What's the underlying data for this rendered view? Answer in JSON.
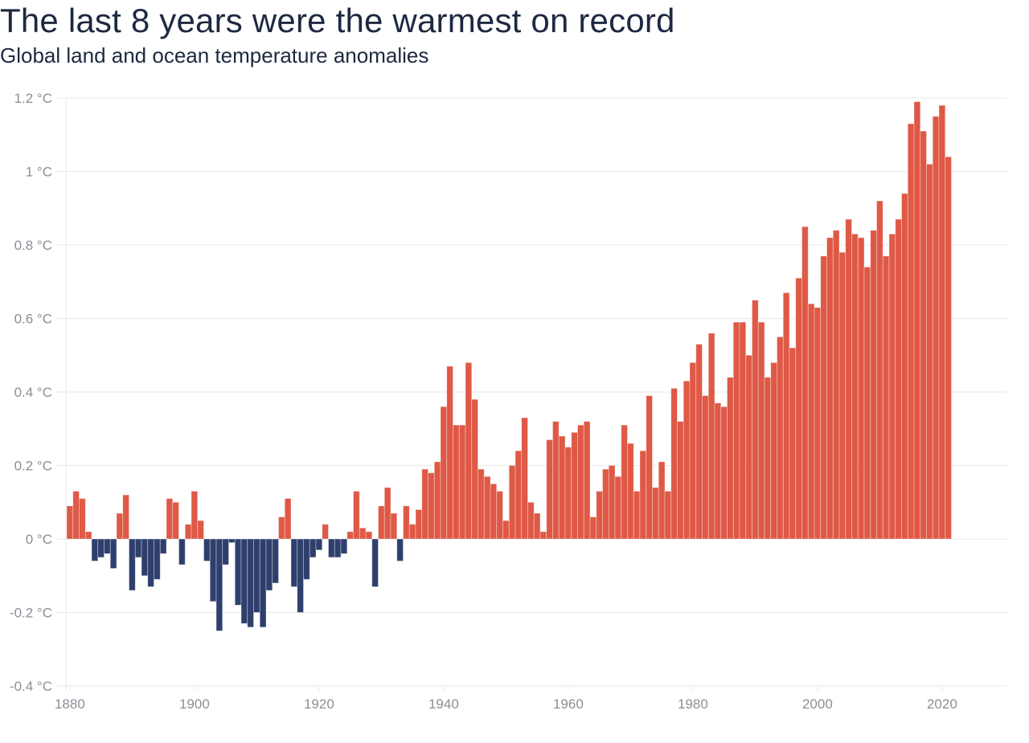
{
  "chart_data": {
    "type": "bar",
    "title": "The last 8 years were the warmest on record",
    "subtitle": "Global land and ocean temperature anomalies",
    "xlabel": "",
    "ylabel": "",
    "unit": "°C",
    "ylim": [
      -0.4,
      1.2
    ],
    "xlim": [
      1879,
      2030
    ],
    "grid": true,
    "legend": "none",
    "y_ticks": [
      -0.4,
      -0.2,
      0,
      0.2,
      0.4,
      0.6,
      0.8,
      1,
      1.2
    ],
    "y_tick_labels": [
      "-0.4 °C",
      "-0.2 °C",
      "0 °C",
      "0.2 °C",
      "0.4 °C",
      "0.6 °C",
      "0.8 °C",
      "1 °C",
      "1.2 °C"
    ],
    "x_ticks": [
      1880,
      1900,
      1920,
      1940,
      1960,
      1980,
      2000,
      2020
    ],
    "x_tick_labels": [
      "1880",
      "1900",
      "1920",
      "1940",
      "1960",
      "1980",
      "2000",
      "2020"
    ],
    "colors": {
      "positive": "#df5946",
      "negative": "#2f3f6d"
    },
    "start_year": 1880,
    "categories": [
      1880,
      1881,
      1882,
      1883,
      1884,
      1885,
      1886,
      1887,
      1888,
      1889,
      1890,
      1891,
      1892,
      1893,
      1894,
      1895,
      1896,
      1897,
      1898,
      1899,
      1900,
      1901,
      1902,
      1903,
      1904,
      1905,
      1906,
      1907,
      1908,
      1909,
      1910,
      1911,
      1912,
      1913,
      1914,
      1915,
      1916,
      1917,
      1918,
      1919,
      1920,
      1921,
      1922,
      1923,
      1924,
      1925,
      1926,
      1927,
      1928,
      1929,
      1930,
      1931,
      1932,
      1933,
      1934,
      1935,
      1936,
      1937,
      1938,
      1939,
      1940,
      1941,
      1942,
      1943,
      1944,
      1945,
      1946,
      1947,
      1948,
      1949,
      1950,
      1951,
      1952,
      1953,
      1954,
      1955,
      1956,
      1957,
      1958,
      1959,
      1960,
      1961,
      1962,
      1963,
      1964,
      1965,
      1966,
      1967,
      1968,
      1969,
      1970,
      1971,
      1972,
      1973,
      1974,
      1975,
      1976,
      1977,
      1978,
      1979,
      1980,
      1981,
      1982,
      1983,
      1984,
      1985,
      1986,
      1987,
      1988,
      1989,
      1990,
      1991,
      1992,
      1993,
      1994,
      1995,
      1996,
      1997,
      1998,
      1999,
      2000,
      2001,
      2002,
      2003,
      2004,
      2005,
      2006,
      2007,
      2008,
      2009,
      2010,
      2011,
      2012,
      2013,
      2014,
      2015,
      2016,
      2017,
      2018,
      2019,
      2020,
      2021
    ],
    "values": [
      0.09,
      0.13,
      0.11,
      0.02,
      -0.06,
      -0.05,
      -0.04,
      -0.08,
      0.07,
      0.12,
      -0.14,
      -0.05,
      -0.1,
      -0.13,
      -0.11,
      -0.04,
      0.11,
      0.1,
      -0.07,
      0.04,
      0.13,
      0.05,
      -0.06,
      -0.17,
      -0.25,
      -0.07,
      -0.01,
      -0.18,
      -0.23,
      -0.24,
      -0.2,
      -0.24,
      -0.14,
      -0.12,
      0.06,
      0.11,
      -0.13,
      -0.2,
      -0.11,
      -0.05,
      -0.03,
      0.04,
      -0.05,
      -0.05,
      -0.04,
      0.02,
      0.13,
      0.03,
      0.02,
      -0.13,
      0.09,
      0.14,
      0.07,
      -0.06,
      0.09,
      0.04,
      0.08,
      0.19,
      0.18,
      0.21,
      0.36,
      0.47,
      0.31,
      0.31,
      0.48,
      0.38,
      0.19,
      0.17,
      0.15,
      0.13,
      0.05,
      0.2,
      0.24,
      0.33,
      0.1,
      0.07,
      0.02,
      0.27,
      0.32,
      0.28,
      0.25,
      0.29,
      0.31,
      0.32,
      0.06,
      0.13,
      0.19,
      0.2,
      0.17,
      0.31,
      0.26,
      0.13,
      0.24,
      0.39,
      0.14,
      0.21,
      0.13,
      0.41,
      0.32,
      0.43,
      0.48,
      0.53,
      0.39,
      0.56,
      0.37,
      0.36,
      0.44,
      0.59,
      0.59,
      0.5,
      0.65,
      0.59,
      0.44,
      0.48,
      0.55,
      0.67,
      0.52,
      0.71,
      0.85,
      0.64,
      0.63,
      0.77,
      0.82,
      0.84,
      0.78,
      0.87,
      0.83,
      0.82,
      0.74,
      0.84,
      0.92,
      0.77,
      0.83,
      0.87,
      0.94,
      1.13,
      1.19,
      1.11,
      1.02,
      1.15,
      1.18,
      1.04
    ]
  }
}
